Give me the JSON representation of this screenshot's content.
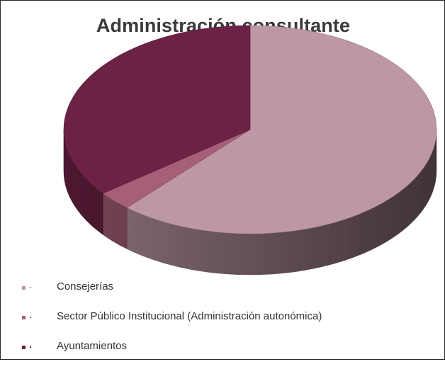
{
  "chart_data": {
    "type": "pie",
    "title": "Administración consultante",
    "categories": [
      "Consejerías",
      "Sector Público Institucional (Administración autonómica)",
      "Ayuntamientos"
    ],
    "values": [
      61.5,
      3.0,
      35.5
    ],
    "colors": [
      "#bd97a5",
      "#a56078",
      "#6b2244"
    ],
    "style": "3d",
    "legend": "bottom-left"
  }
}
